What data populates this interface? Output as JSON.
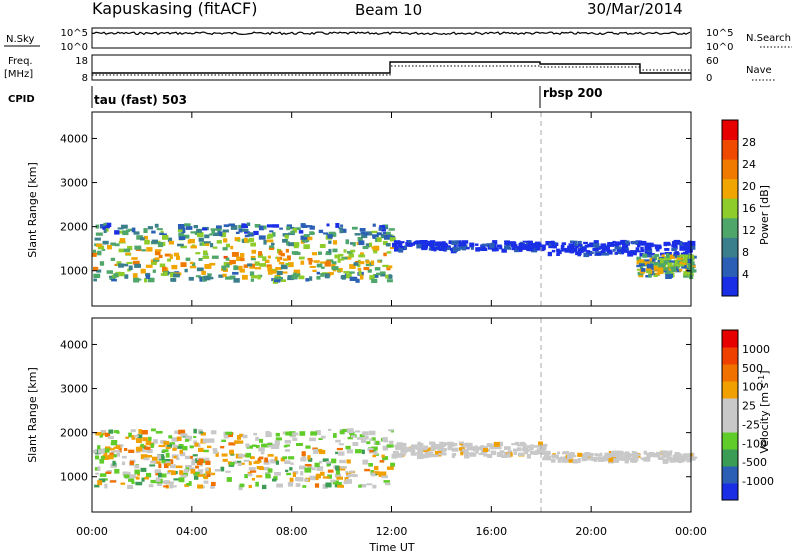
{
  "header": {
    "station": "Kapuskasing (fitACF)",
    "beam": "Beam 10",
    "date": "30/Mar/2014"
  },
  "top_panels": {
    "nsky": {
      "label": "N.Sky",
      "left_ticks": [
        "10^5",
        "10^0"
      ],
      "right_ticks": [
        "10^5",
        "10^0"
      ],
      "right_label": "N.Search"
    },
    "freq": {
      "label": "Freq.",
      "unit": "[MHz]",
      "left_ticks": [
        "18",
        "8"
      ],
      "right_ticks": [
        "60",
        "0"
      ],
      "right_label": "Nave"
    },
    "cpid": {
      "label": "CPID",
      "segments": [
        {
          "name": "tau (fast) 503",
          "start": 0
        },
        {
          "name": "rbsp 200",
          "start": 18
        }
      ]
    }
  },
  "chart_data": [
    {
      "type": "heatmap",
      "ylabel": "Slant Range [km]",
      "xlim": [
        0,
        24
      ],
      "ylim": [
        200,
        4600
      ],
      "y_ticks": [
        "1000",
        "2000",
        "3000",
        "4000"
      ],
      "colorbar": {
        "label": "Power [dB]",
        "ticks": [
          "28",
          "24",
          "20",
          "16",
          "12",
          "8",
          "4"
        ],
        "colors": [
          "#1a2ee6",
          "#2a5fb5",
          "#3b7f8c",
          "#4fa66a",
          "#8dcc2a",
          "#f0a500",
          "#f07a00",
          "#f04a00",
          "#e60000"
        ]
      },
      "features": [
        {
          "start": 0.0,
          "end": 12.0,
          "range_min": 800,
          "range_max": 2100,
          "level": "mixed"
        },
        {
          "start": 12.0,
          "end": 18.0,
          "range_min": 1500,
          "range_max": 1700,
          "level": "low"
        },
        {
          "start": 18.0,
          "end": 24.0,
          "range_min": 1400,
          "range_max": 1700,
          "level": "low"
        },
        {
          "start": 21.8,
          "end": 24.0,
          "range_min": 900,
          "range_max": 1400,
          "level": "mid"
        }
      ]
    },
    {
      "type": "heatmap",
      "ylabel": "Slant Range [km]",
      "xlabel": "Time UT",
      "xlim": [
        0,
        24
      ],
      "ylim": [
        200,
        4600
      ],
      "x_ticks": [
        "00:00",
        "04:00",
        "08:00",
        "12:00",
        "16:00",
        "20:00",
        "00:00"
      ],
      "y_ticks": [
        "1000",
        "2000",
        "3000",
        "4000"
      ],
      "colorbar": {
        "label": "Velocity [m s",
        "label_sup": "-1",
        "label_end": "]",
        "ticks": [
          "1000",
          "500",
          "100",
          "25",
          "-25",
          "-100",
          "-500",
          "-1000"
        ],
        "colors": [
          "#1a2ee6",
          "#2a5fb5",
          "#3b9c55",
          "#5fcc2a",
          "#c8c8c8",
          "#c8c8c8",
          "#f0a000",
          "#f07000",
          "#f04000",
          "#e60000"
        ]
      },
      "features": [
        {
          "start": 0.0,
          "end": 12.0,
          "range_min": 800,
          "range_max": 2100,
          "level": "mixed"
        },
        {
          "start": 12.0,
          "end": 18.0,
          "range_min": 1500,
          "range_max": 1800,
          "level": "ground"
        },
        {
          "start": 18.0,
          "end": 24.0,
          "range_min": 1400,
          "range_max": 1600,
          "level": "ground"
        }
      ]
    }
  ]
}
